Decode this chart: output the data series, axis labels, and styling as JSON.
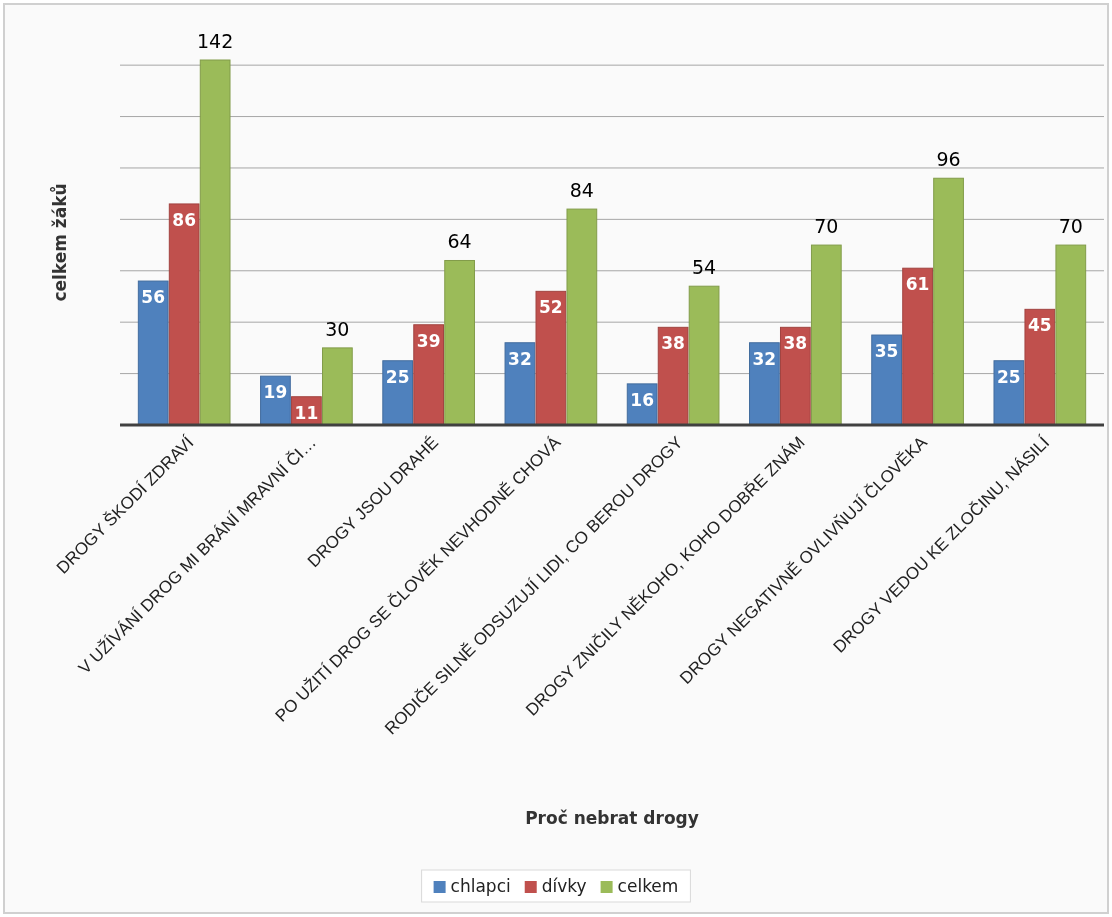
{
  "chart_data": {
    "type": "bar",
    "xlabel": "Proč nebrat drogy",
    "ylabel": "celkem žáků",
    "categories": [
      "DROGY ŠKODÍ ZDRAVÍ",
      "V UŽÍVÁNÍ DROG MI BRÁNÍ MRAVNÍ ČI…",
      "DROGY JSOU DRAHÉ",
      "PO UŽITÍ DROG SE ČLOVĚK NEVHODNĚ CHOVÁ",
      "RODIČE SILNĚ ODSUZUJÍ LIDI, CO BEROU DROGY",
      "DROGY ZNIČILY NĚKOHO, KOHO DOBŘE ZNÁM",
      "DROGY NEGATIVNĚ OVLIVŇUJÍ ČLOVĚKA",
      "DROGY VEDOU KE ZLOČINU, NÁSILÍ"
    ],
    "series": [
      {
        "name": "chlapci",
        "color": "#4f81bd",
        "values": [
          56,
          19,
          25,
          32,
          16,
          32,
          35,
          25
        ]
      },
      {
        "name": "dívky",
        "color": "#c0504d",
        "values": [
          86,
          11,
          39,
          52,
          38,
          38,
          61,
          45
        ]
      },
      {
        "name": "celkem",
        "color": "#9bbb59",
        "values": [
          142,
          30,
          64,
          84,
          54,
          70,
          96,
          70
        ]
      }
    ],
    "ylim": [
      0,
      142
    ],
    "yticks": [
      {
        "value": 0,
        "label": null
      },
      {
        "value": 20,
        "label": null
      },
      {
        "value": 40,
        "label": null
      },
      {
        "value": 60,
        "label": null
      },
      {
        "value": 80,
        "label": null
      },
      {
        "value": 100,
        "label": null
      },
      {
        "value": 120,
        "label": null
      },
      {
        "value": 140,
        "label": null
      }
    ],
    "tick_labels": "x",
    "grid": "y",
    "legend": "bottom",
    "data_labels": true
  }
}
